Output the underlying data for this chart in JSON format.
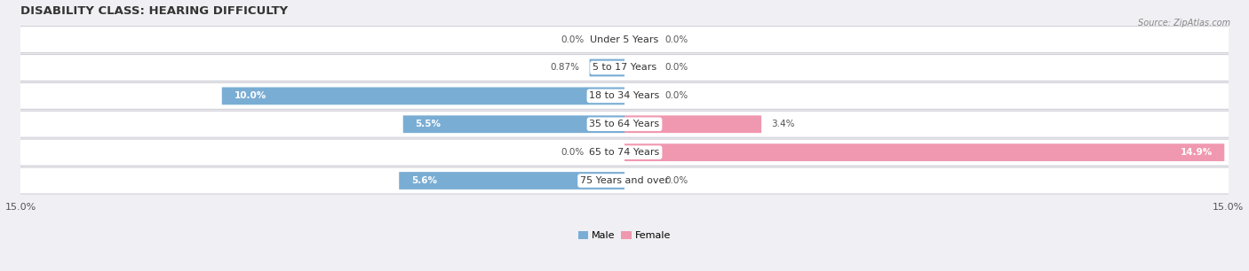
{
  "title": "DISABILITY CLASS: HEARING DIFFICULTY",
  "source": "Source: ZipAtlas.com",
  "categories": [
    "Under 5 Years",
    "5 to 17 Years",
    "18 to 34 Years",
    "35 to 64 Years",
    "65 to 74 Years",
    "75 Years and over"
  ],
  "male_values": [
    0.0,
    0.87,
    10.0,
    5.5,
    0.0,
    5.6
  ],
  "female_values": [
    0.0,
    0.0,
    0.0,
    3.4,
    14.9,
    0.0
  ],
  "male_color": "#7aadd4",
  "female_color": "#f098b0",
  "bar_bg_color": "#f0f0f0",
  "bar_border_color": "#d0d0d8",
  "max_val": 15.0,
  "title_fontsize": 9.5,
  "label_fontsize": 8,
  "value_fontsize": 7.5,
  "tick_fontsize": 8,
  "background_color": "#f0f0f4"
}
